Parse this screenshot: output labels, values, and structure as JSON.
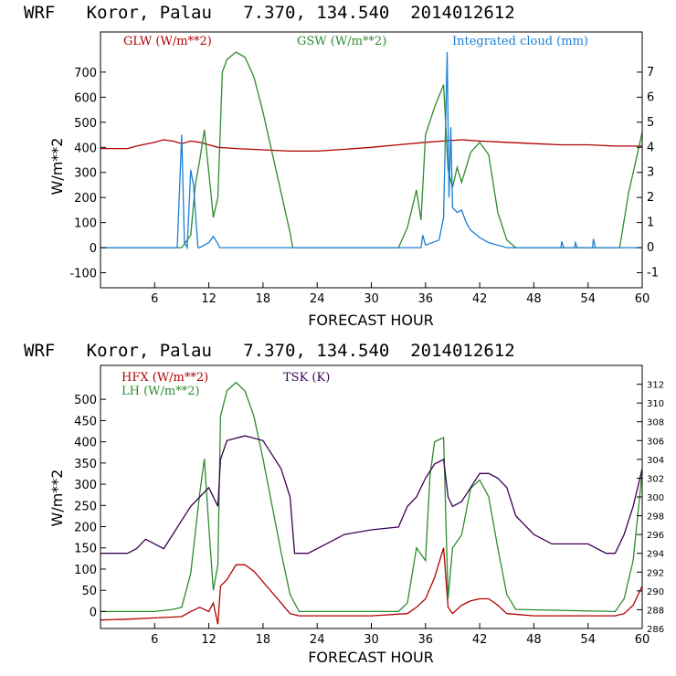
{
  "chart_data": [
    {
      "type": "line",
      "title": "WRF   Koror, Palau   7.370, 134.540  2014012612",
      "xlabel": "FORECAST HOUR",
      "ylabel": "W/m**2",
      "xlim": [
        0,
        60
      ],
      "ylim": [
        -160,
        860
      ],
      "y2lim": [
        -1.6,
        8.6
      ],
      "xticks": [
        6,
        12,
        18,
        24,
        30,
        36,
        42,
        48,
        54,
        60
      ],
      "yticks": [
        -100,
        0,
        100,
        200,
        300,
        400,
        500,
        600,
        700
      ],
      "y2ticks": [
        -1,
        0,
        1,
        2,
        3,
        4,
        5,
        6,
        7
      ],
      "series": [
        {
          "name": "GLW (W/m**2)",
          "color": "#b00000",
          "axis": "left",
          "x": [
            0,
            3,
            4,
            6,
            7,
            8,
            9,
            10,
            11,
            12,
            13,
            15,
            18,
            21,
            24,
            27,
            30,
            33,
            36,
            38,
            40,
            42,
            45,
            48,
            51,
            54,
            57,
            60
          ],
          "values": [
            395,
            395,
            405,
            420,
            430,
            425,
            415,
            425,
            420,
            410,
            400,
            395,
            390,
            385,
            385,
            392,
            400,
            410,
            420,
            425,
            430,
            425,
            420,
            415,
            410,
            410,
            405,
            405
          ]
        },
        {
          "name": "GSW (W/m**2)",
          "color": "#2e8b2e",
          "axis": "left",
          "x": [
            0,
            9,
            10,
            10.5,
            11,
            11.5,
            12,
            12.5,
            13,
            13.5,
            14,
            15,
            16,
            17,
            18,
            19,
            20,
            21,
            21.3,
            33,
            34,
            35,
            35.5,
            36,
            37,
            38,
            38.5,
            39,
            39.5,
            40,
            41,
            42,
            43,
            44,
            45,
            46,
            57.5,
            58.5,
            59.5,
            60
          ],
          "values": [
            0,
            0,
            50,
            250,
            350,
            470,
            300,
            120,
            200,
            700,
            750,
            780,
            760,
            680,
            540,
            380,
            220,
            60,
            0,
            0,
            80,
            230,
            110,
            450,
            560,
            650,
            310,
            240,
            320,
            260,
            380,
            420,
            370,
            140,
            30,
            0,
            0,
            220,
            380,
            460
          ]
        },
        {
          "name": "Integrated cloud (mm)",
          "color": "#1a7fd6",
          "axis": "right",
          "x": [
            0,
            8.5,
            9,
            9.3,
            9.6,
            10,
            10.3,
            10.8,
            11,
            12,
            12.5,
            13,
            13.2,
            35.5,
            35.7,
            36,
            37.5,
            38,
            38.4,
            38.6,
            38.8,
            39,
            39.5,
            40,
            40.5,
            41,
            42,
            43,
            45,
            51,
            51.1,
            51.3,
            52.5,
            52.6,
            52.8,
            54.5,
            54.6,
            54.8,
            60
          ],
          "values": [
            0,
            0,
            4.5,
            0.2,
            0,
            3.1,
            2.5,
            0,
            0,
            0.2,
            0.45,
            0.15,
            0,
            0,
            0.5,
            0.1,
            0.3,
            1.2,
            7.8,
            2.0,
            4.8,
            1.6,
            1.4,
            1.5,
            1.0,
            0.7,
            0.4,
            0.2,
            0,
            0,
            0.25,
            0,
            0,
            0.2,
            0,
            0,
            0.35,
            0,
            0
          ]
        }
      ],
      "legend": [
        "GLW (W/m**2)",
        "GSW (W/m**2)",
        "Integrated cloud (mm)"
      ]
    },
    {
      "type": "line",
      "title": "WRF   Koror, Palau   7.370, 134.540  2014012612",
      "xlabel": "FORECAST HOUR",
      "ylabel": "W/m**2",
      "xlim": [
        0,
        60
      ],
      "ylim": [
        -40,
        580
      ],
      "y2lim": [
        286,
        314
      ],
      "xticks": [
        6,
        12,
        18,
        24,
        30,
        36,
        42,
        48,
        54,
        60
      ],
      "yticks": [
        0,
        50,
        100,
        150,
        200,
        250,
        300,
        350,
        400,
        450,
        500
      ],
      "y2ticks": [
        286,
        288,
        290,
        292,
        294,
        296,
        298,
        300,
        302,
        304,
        306,
        308,
        310,
        312
      ],
      "series": [
        {
          "name": "HFX (W/m**2)",
          "color": "#b00000",
          "axis": "left",
          "x": [
            0,
            3,
            6,
            9,
            10,
            11,
            12,
            12.5,
            13,
            13.3,
            14,
            15,
            16,
            17,
            18,
            19,
            20,
            21,
            22,
            24,
            30,
            34,
            35,
            36,
            37,
            38,
            38.5,
            39,
            40,
            41,
            42,
            43,
            44,
            45,
            48,
            54,
            57,
            58,
            59,
            60
          ],
          "values": [
            -20,
            -18,
            -15,
            -12,
            0,
            10,
            0,
            20,
            -30,
            60,
            75,
            110,
            110,
            95,
            70,
            45,
            20,
            -5,
            -10,
            -10,
            -10,
            -5,
            10,
            30,
            80,
            150,
            10,
            -5,
            15,
            25,
            30,
            30,
            15,
            -5,
            -10,
            -10,
            -10,
            -5,
            15,
            60
          ]
        },
        {
          "name": "LH (W/m**2)",
          "color": "#2e8b2e",
          "axis": "left",
          "x": [
            0,
            6,
            8,
            9,
            10,
            11,
            11.5,
            12,
            12.5,
            13,
            13.3,
            14,
            15,
            16,
            17,
            18,
            19,
            20,
            21,
            22,
            24,
            33,
            34,
            35,
            36,
            36.5,
            37,
            38,
            38.5,
            39,
            40,
            41,
            42,
            43,
            44,
            45,
            46,
            57,
            58,
            59,
            60
          ],
          "values": [
            0,
            0,
            5,
            10,
            90,
            280,
            360,
            200,
            50,
            110,
            460,
            520,
            540,
            520,
            460,
            360,
            250,
            140,
            40,
            0,
            0,
            0,
            20,
            150,
            120,
            320,
            400,
            410,
            30,
            150,
            180,
            290,
            310,
            270,
            150,
            40,
            5,
            0,
            30,
            120,
            330
          ]
        },
        {
          "name": "TSK (K)",
          "color": "#3a0050",
          "axis": "right",
          "x": [
            0,
            3,
            4,
            5,
            6,
            7,
            8,
            9,
            10,
            11,
            12,
            13,
            13.3,
            14,
            16,
            18,
            19,
            20,
            21,
            21.5,
            23,
            25,
            27,
            30,
            33,
            34,
            35,
            36,
            37,
            38,
            38.5,
            39,
            40,
            41,
            42,
            43,
            44,
            45,
            46,
            48,
            50,
            54,
            56,
            57,
            58,
            59,
            60
          ],
          "values": [
            294,
            294,
            294.5,
            295.5,
            295,
            294.5,
            296,
            297.5,
            299,
            300,
            301,
            299,
            304,
            306,
            306.5,
            306,
            304.5,
            303,
            300,
            294,
            294,
            295,
            296,
            296.5,
            296.8,
            299,
            300,
            302,
            303.5,
            304,
            300,
            299,
            299.5,
            301,
            302.5,
            302.5,
            302,
            301,
            298,
            296,
            295,
            295,
            294,
            294,
            296,
            299,
            303
          ]
        }
      ],
      "legend": [
        "HFX (W/m**2)",
        "LH (W/m**2)",
        "TSK (K)"
      ]
    }
  ]
}
